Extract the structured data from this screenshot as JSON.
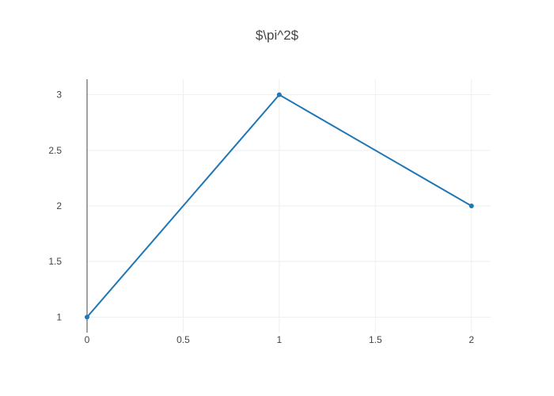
{
  "chart_data": {
    "type": "line",
    "title": "$\\pi^2$",
    "xlabel": "",
    "ylabel": "",
    "x": [
      0,
      1,
      2
    ],
    "series": [
      {
        "values": [
          1,
          3,
          2
        ],
        "color": "#1f77b4",
        "markers": true
      }
    ],
    "xlim": [
      0,
      2.1
    ],
    "ylim": [
      0.86,
      3.14
    ],
    "x_ticks": [
      {
        "value": 0,
        "label": "0"
      },
      {
        "value": 0.5,
        "label": "0.5"
      },
      {
        "value": 1,
        "label": "1"
      },
      {
        "value": 1.5,
        "label": "1.5"
      },
      {
        "value": 2,
        "label": "2"
      }
    ],
    "y_ticks": [
      {
        "value": 1,
        "label": "1"
      },
      {
        "value": 1.5,
        "label": "1.5"
      },
      {
        "value": 2,
        "label": "2"
      },
      {
        "value": 2.5,
        "label": "2.5"
      },
      {
        "value": 3,
        "label": "3"
      }
    ],
    "grid": true,
    "legend": "none",
    "colors": {
      "grid": "#eeeeee",
      "zeroline": "#444444",
      "text": "#444444"
    }
  }
}
